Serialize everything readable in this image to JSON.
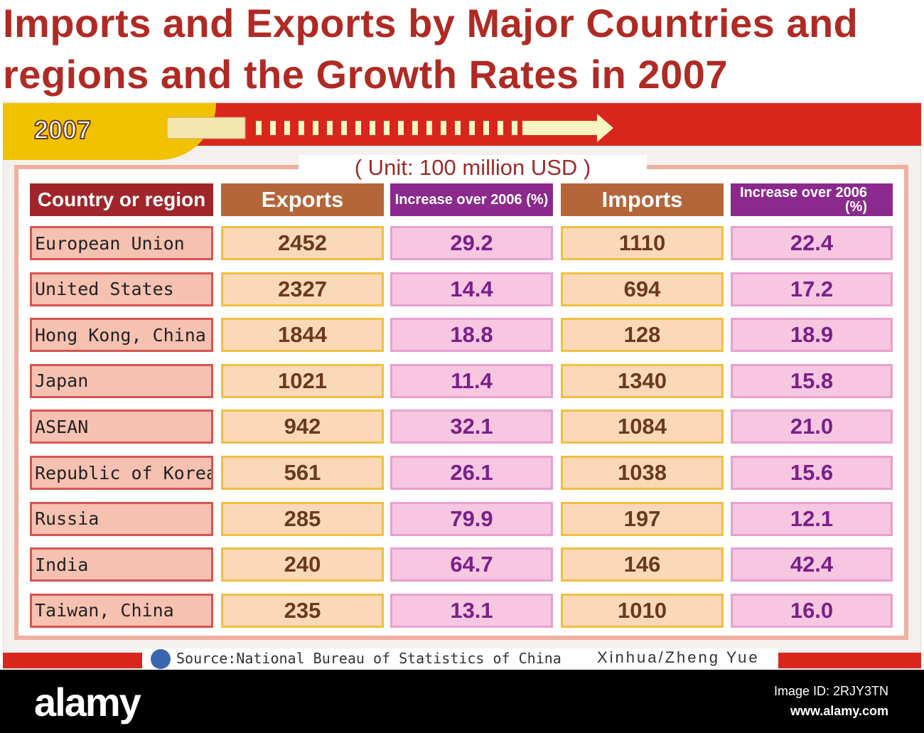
{
  "header": {
    "title_lines": [
      "Imports and Exports by Major Countries and",
      "regions and the Growth Rates in 2007"
    ],
    "year": "2007",
    "unit": "( Unit:  100 million USD )"
  },
  "table": {
    "columns": [
      "Country or region",
      "Exports",
      "Increase over 2006 (%)",
      "Imports",
      "Increase over 2006 (%)"
    ],
    "rows": [
      [
        "European Union",
        "2452",
        "29.2",
        "1110",
        "22.4"
      ],
      [
        "United States",
        "2327",
        "14.4",
        "694",
        "17.2"
      ],
      [
        "Hong Kong, China",
        "1844",
        "18.8",
        "128",
        "18.9"
      ],
      [
        "Japan",
        "1021",
        "11.4",
        "1340",
        "15.8"
      ],
      [
        "ASEAN",
        "942",
        "32.1",
        "1084",
        "21.0"
      ],
      [
        "Republic of Korea",
        "561",
        "26.1",
        "1038",
        "15.6"
      ],
      [
        "Russia",
        "285",
        "79.9",
        "197",
        "12.1"
      ],
      [
        "India",
        "240",
        "64.7",
        "146",
        "42.4"
      ],
      [
        "Taiwan, China",
        "235",
        "13.1",
        "1010",
        "16.0"
      ]
    ]
  },
  "footer": {
    "source": "Source:National Bureau of Statistics of China",
    "credit": "Xinhua/Zheng Yue"
  },
  "watermark": {
    "brand": "alamy",
    "image_id": "Image ID: 2RJY3TN",
    "url": "www.alamy.com"
  }
}
